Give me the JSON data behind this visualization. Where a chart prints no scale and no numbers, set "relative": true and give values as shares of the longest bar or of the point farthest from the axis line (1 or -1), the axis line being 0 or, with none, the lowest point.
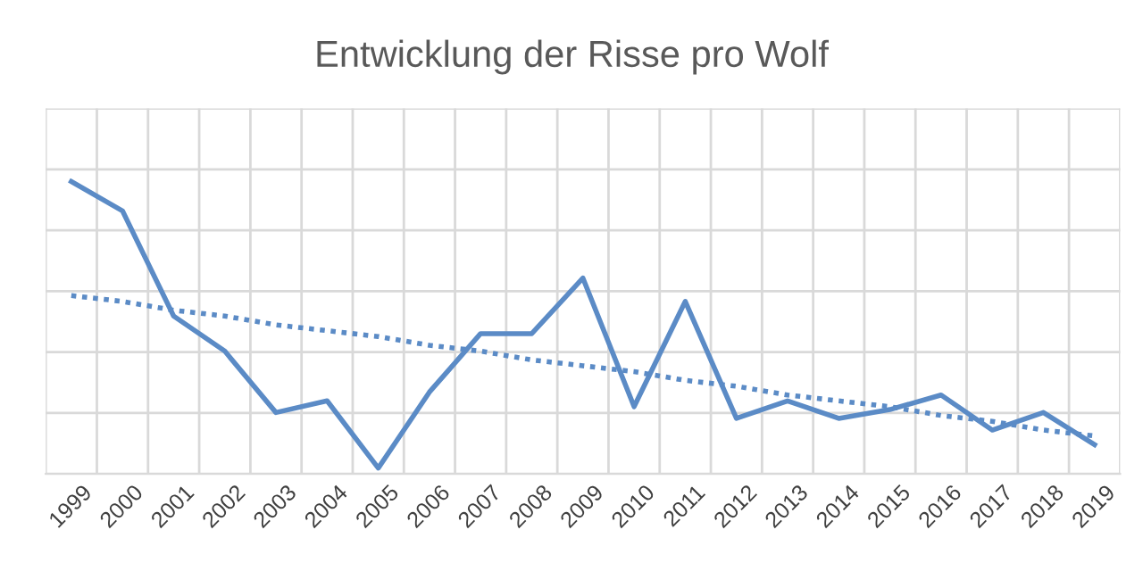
{
  "chart_data": {
    "type": "line",
    "title": "Entwicklung der Risse pro Wolf",
    "relative": true,
    "grid": true,
    "categories": [
      "1999",
      "2000",
      "2001",
      "2002",
      "2003",
      "2004",
      "2005",
      "2006",
      "2007",
      "2008",
      "2009",
      "2010",
      "2011",
      "2012",
      "2013",
      "2014",
      "2015",
      "2016",
      "2017",
      "2018",
      "2019"
    ],
    "series": [
      {
        "color": "#5b8bc6",
        "line_style": "solid",
        "values": [
          1.0,
          0.9,
          0.54,
          0.42,
          0.21,
          0.25,
          0.02,
          0.28,
          0.48,
          0.48,
          0.67,
          0.23,
          0.59,
          0.19,
          0.25,
          0.19,
          0.22,
          0.27,
          0.15,
          0.21,
          0.1
        ]
      },
      {
        "color": "#5b8bc6",
        "line_style": "dotted",
        "values": [
          0.61,
          0.59,
          0.56,
          0.54,
          0.51,
          0.49,
          0.47,
          0.44,
          0.42,
          0.39,
          0.37,
          0.35,
          0.32,
          0.3,
          0.27,
          0.25,
          0.23,
          0.2,
          0.18,
          0.15,
          0.13
        ]
      }
    ]
  }
}
